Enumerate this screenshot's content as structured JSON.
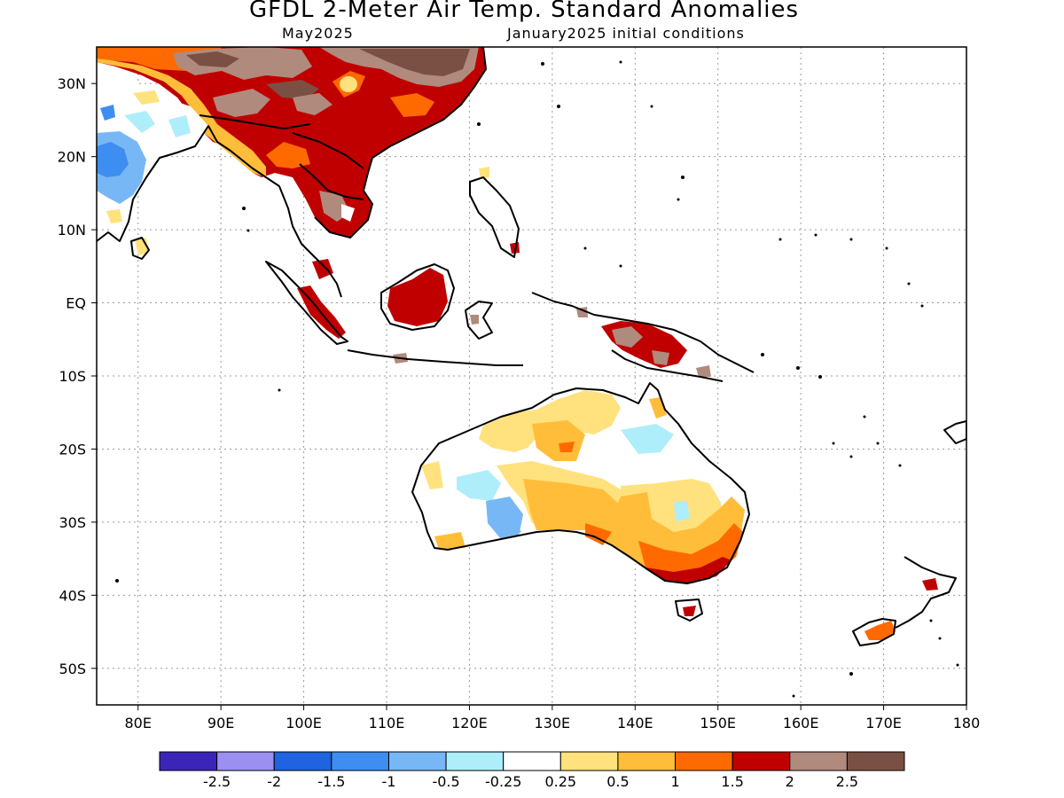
{
  "title": "GFDL 2-Meter Air Temp. Standard Anomalies",
  "subtitle_left": "May2025",
  "subtitle_right": "January2025 initial conditions",
  "map": {
    "lon_range": [
      75,
      180
    ],
    "lat_range": [
      -55,
      35
    ],
    "lon_ticks": [
      {
        "value": 80,
        "label": "80E"
      },
      {
        "value": 90,
        "label": "90E"
      },
      {
        "value": 100,
        "label": "100E"
      },
      {
        "value": 110,
        "label": "110E"
      },
      {
        "value": 120,
        "label": "120E"
      },
      {
        "value": 130,
        "label": "130E"
      },
      {
        "value": 140,
        "label": "140E"
      },
      {
        "value": 150,
        "label": "150E"
      },
      {
        "value": 160,
        "label": "160E"
      },
      {
        "value": 170,
        "label": "170E"
      },
      {
        "value": 180,
        "label": "180"
      }
    ],
    "lat_ticks": [
      {
        "value": 30,
        "label": "30N"
      },
      {
        "value": 20,
        "label": "20N"
      },
      {
        "value": 10,
        "label": "10N"
      },
      {
        "value": 0,
        "label": "EQ"
      },
      {
        "value": -10,
        "label": "10S"
      },
      {
        "value": -20,
        "label": "20S"
      },
      {
        "value": -30,
        "label": "30S"
      },
      {
        "value": -40,
        "label": "40S"
      },
      {
        "value": -50,
        "label": "50S"
      }
    ]
  },
  "colorbar": {
    "colors": [
      "#3a25b8",
      "#9b8ff2",
      "#1f63e0",
      "#3d8ef0",
      "#78b7f5",
      "#aeeefa",
      "#ffffff",
      "#ffe27d",
      "#ffbd3a",
      "#ff6a00",
      "#c00000",
      "#b08a7d",
      "#7a5044"
    ],
    "labels": [
      "-2.5",
      "-2",
      "-1.5",
      "-1",
      "-0.5",
      "-0.25",
      "0.25",
      "0.5",
      "1",
      "1.5",
      "2",
      "2.5"
    ]
  }
}
